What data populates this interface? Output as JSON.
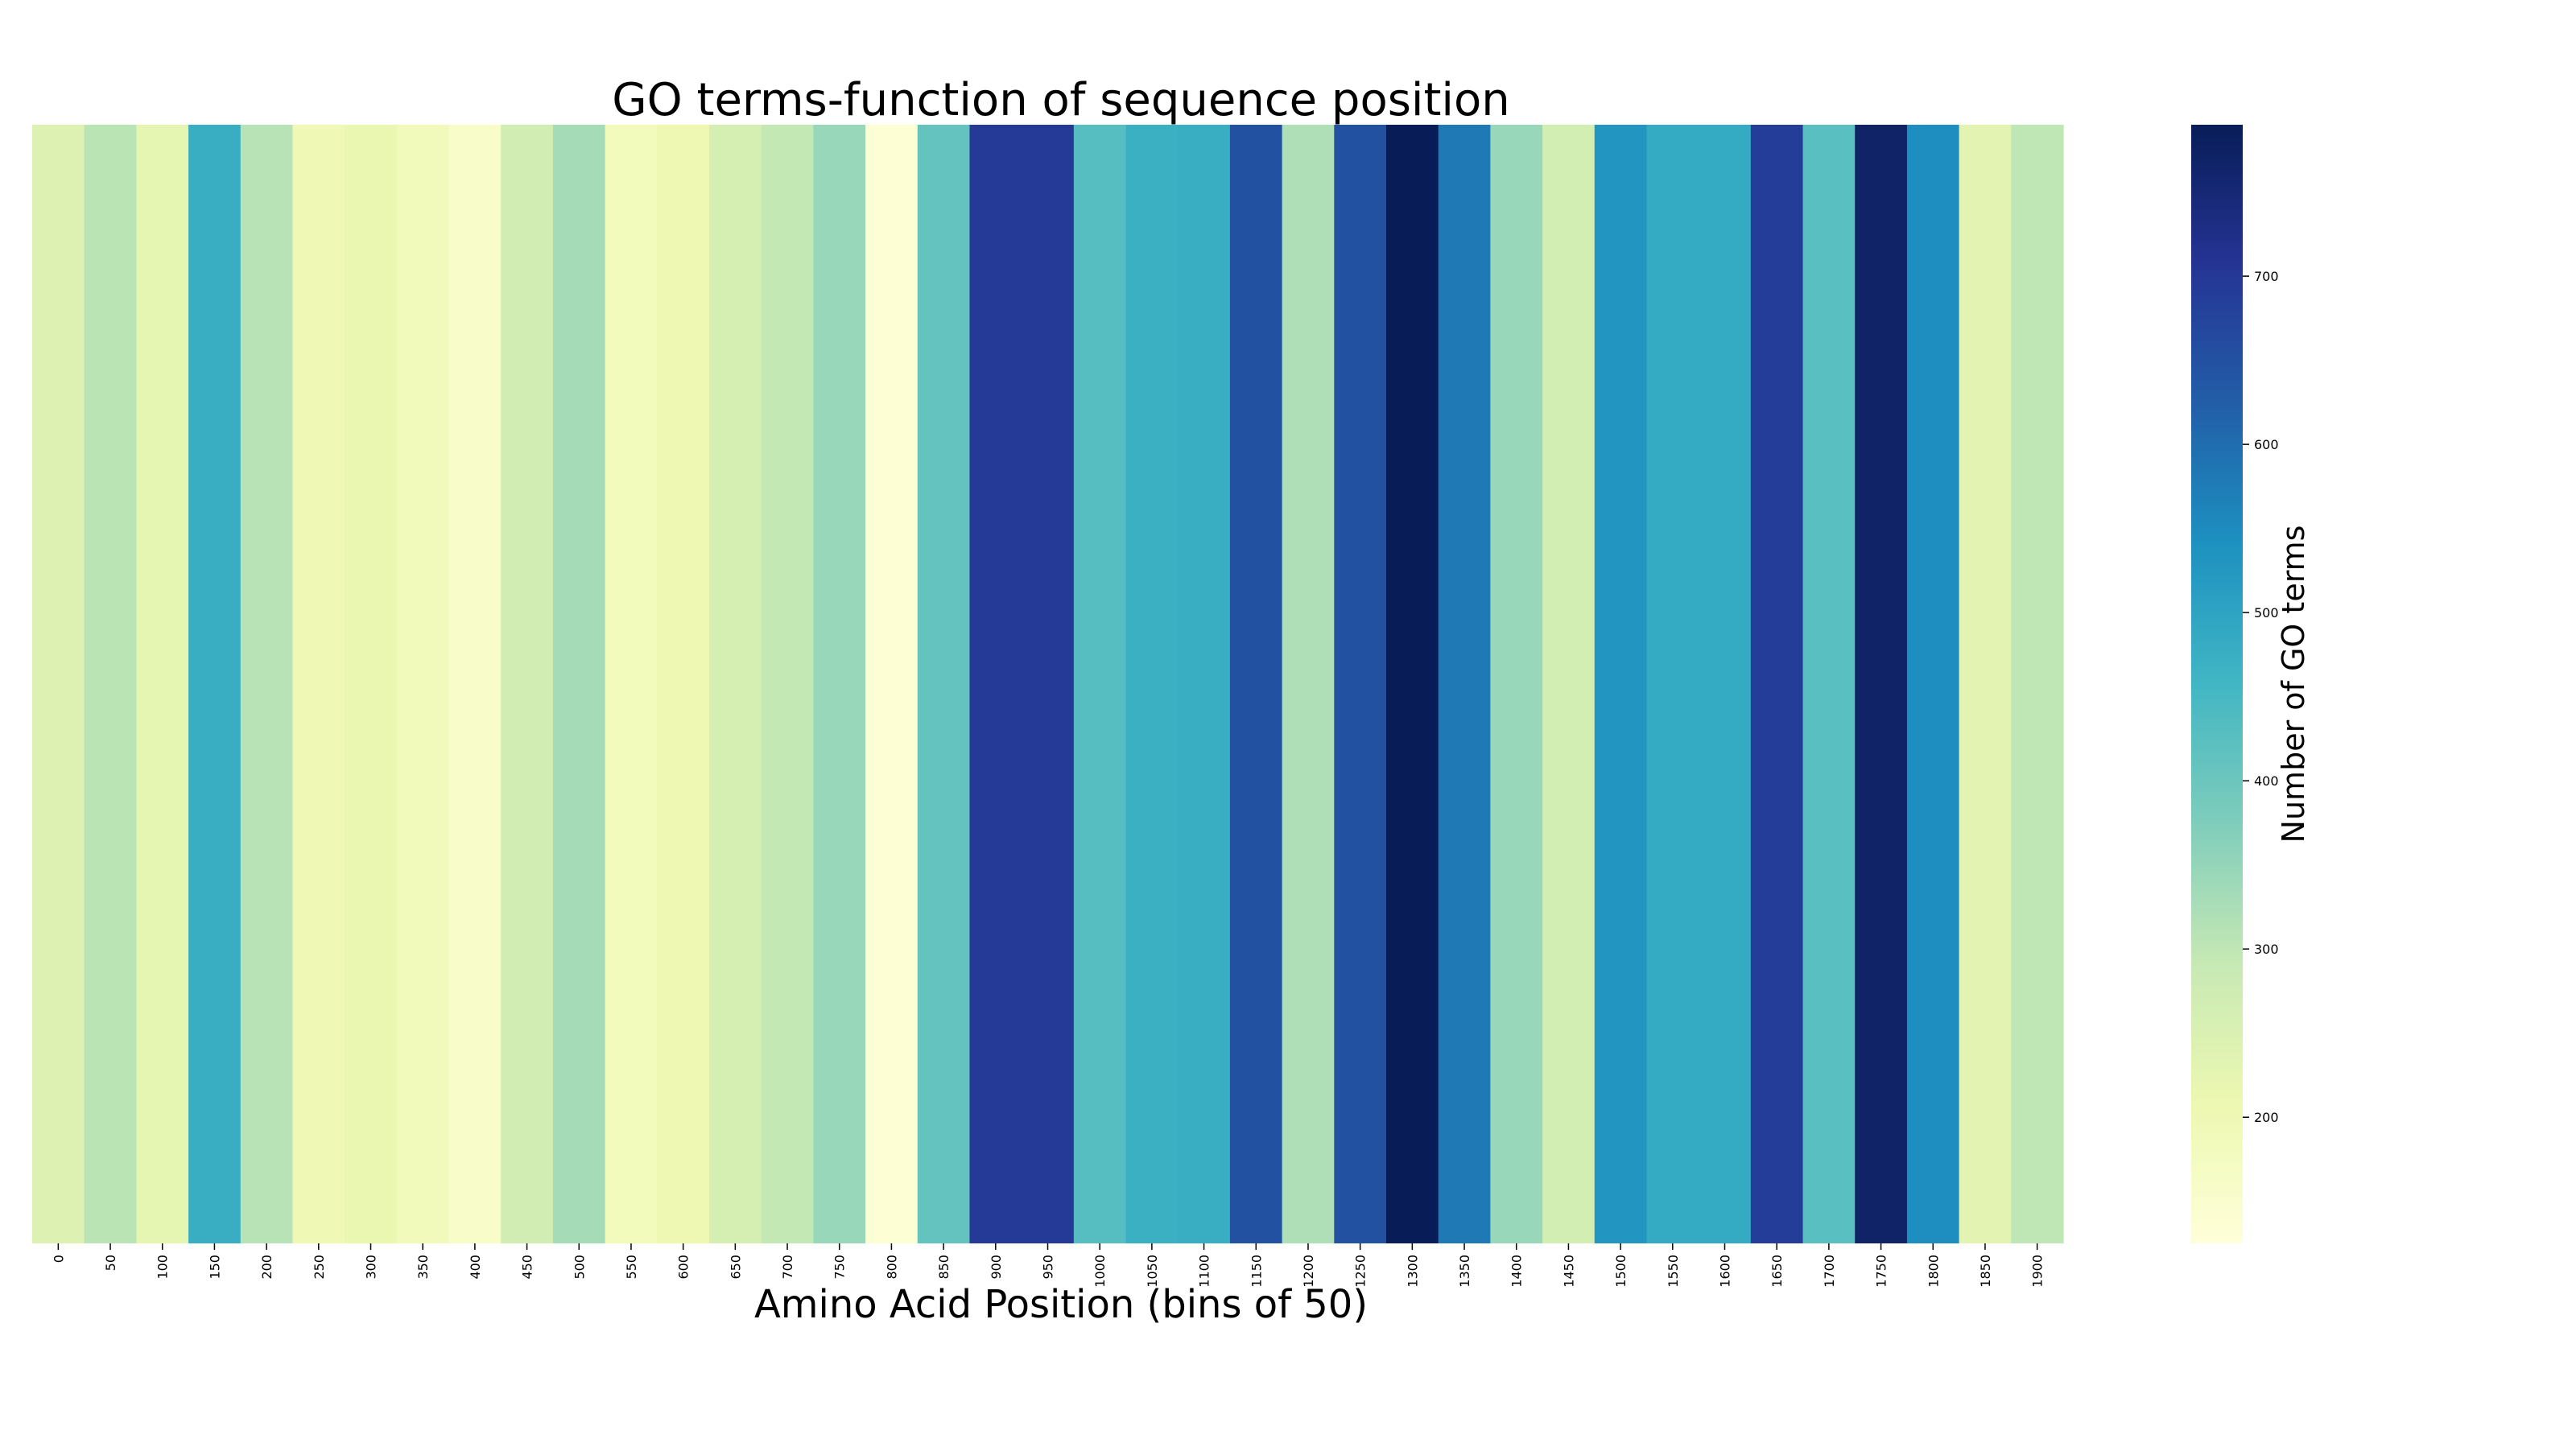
{
  "chart_data": {
    "type": "heatmap",
    "title": "GO terms-function of sequence position",
    "xlabel": "Amino Acid Position (bins of 50)",
    "colorbar_label": "Number of GO terms",
    "colormap": "YlGnBu",
    "color_range": [
      125,
      790
    ],
    "colorbar_ticks": [
      200,
      300,
      400,
      500,
      600,
      700
    ],
    "categories": [
      "0",
      "50",
      "100",
      "150",
      "200",
      "250",
      "300",
      "350",
      "400",
      "450",
      "500",
      "550",
      "600",
      "650",
      "700",
      "750",
      "800",
      "850",
      "900",
      "950",
      "1000",
      "1050",
      "1100",
      "1150",
      "1200",
      "1250",
      "1300",
      "1350",
      "1400",
      "1450",
      "1500",
      "1550",
      "1600",
      "1650",
      "1700",
      "1750",
      "1800",
      "1850",
      "1900"
    ],
    "values": [
      245,
      305,
      225,
      475,
      310,
      200,
      215,
      190,
      160,
      270,
      330,
      185,
      205,
      260,
      295,
      345,
      135,
      410,
      695,
      695,
      430,
      470,
      475,
      650,
      320,
      650,
      790,
      580,
      345,
      265,
      530,
      485,
      485,
      690,
      425,
      770,
      545,
      230,
      300
    ]
  }
}
